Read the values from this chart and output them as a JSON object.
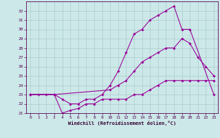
{
  "bg_color": "#cce8e8",
  "grid_color": "#aacccc",
  "line_color": "#990099",
  "xlabel": "Windchill (Refroidissement éolien,°C)",
  "xlim": [
    -0.5,
    23.5
  ],
  "ylim": [
    21,
    33
  ],
  "yticks": [
    21,
    22,
    23,
    24,
    25,
    26,
    27,
    28,
    29,
    30,
    31,
    32
  ],
  "xticks": [
    0,
    1,
    2,
    3,
    4,
    5,
    6,
    7,
    8,
    9,
    10,
    11,
    12,
    13,
    14,
    15,
    16,
    17,
    18,
    19,
    20,
    21,
    22,
    23
  ],
  "lines": [
    {
      "x": [
        0,
        1,
        2,
        3,
        4,
        5,
        6,
        7,
        8,
        9,
        10,
        11,
        12,
        13,
        14,
        15,
        16,
        17,
        18,
        19,
        20,
        21,
        22,
        23
      ],
      "y": [
        23,
        23,
        23,
        23,
        21,
        21.3,
        21.5,
        22,
        22,
        22.5,
        22.5,
        22.5,
        22.5,
        23,
        23,
        23.5,
        24,
        24.5,
        24.5,
        24.5,
        24.5,
        24.5,
        24.5,
        24.5
      ]
    },
    {
      "x": [
        0,
        3,
        4,
        5,
        6,
        7,
        8,
        9,
        10,
        11,
        12,
        13,
        14,
        15,
        16,
        17,
        18,
        19,
        20,
        23
      ],
      "y": [
        23,
        23,
        22.5,
        22,
        22,
        22.5,
        22.5,
        23,
        24,
        25.5,
        27.5,
        29.5,
        30,
        31,
        31.5,
        32,
        32.5,
        30,
        30,
        23
      ]
    },
    {
      "x": [
        0,
        3,
        10,
        11,
        12,
        13,
        14,
        15,
        16,
        17,
        18,
        19,
        20,
        21,
        22,
        23
      ],
      "y": [
        23,
        23,
        23.5,
        24,
        24.5,
        25.5,
        26.5,
        27,
        27.5,
        28,
        28,
        29,
        28.5,
        27,
        26,
        25
      ]
    }
  ]
}
